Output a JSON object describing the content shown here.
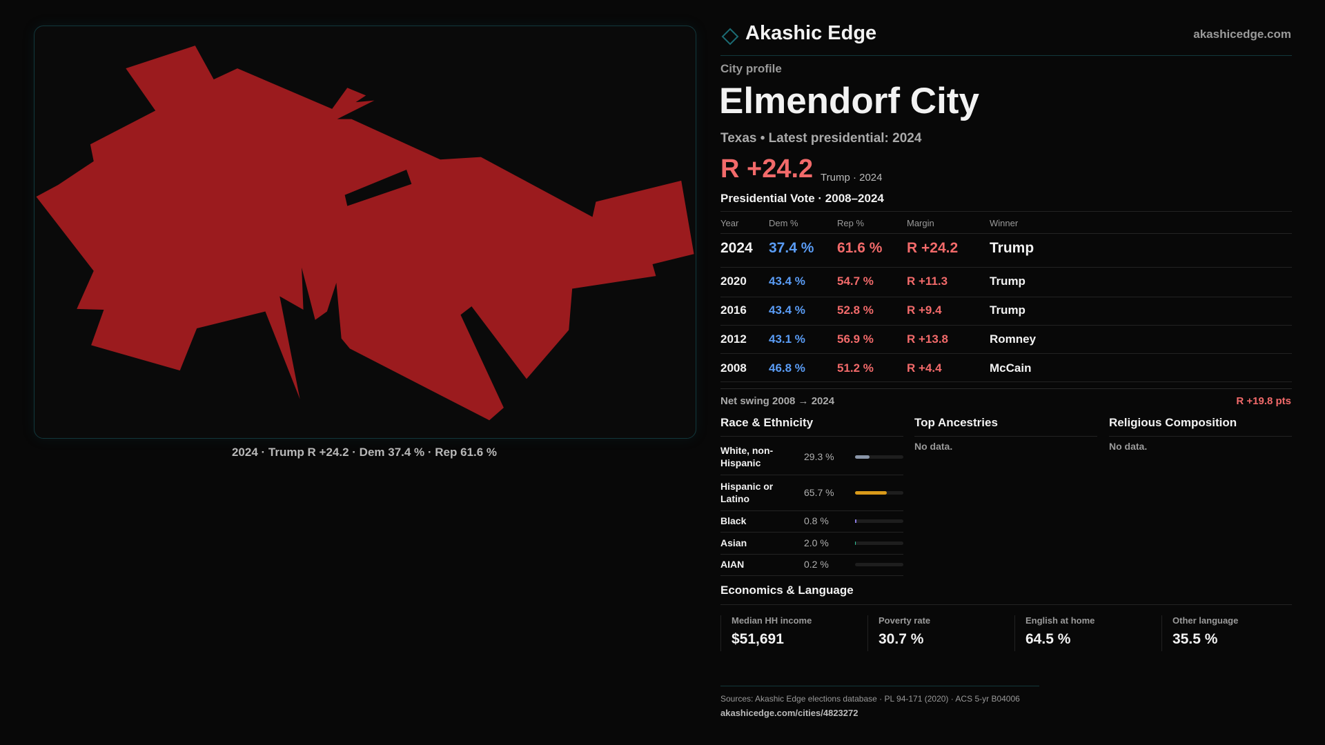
{
  "brand": {
    "name": "Akashic Edge",
    "site": "akashicedge.com",
    "logo_icon": "diamond-outline-icon",
    "accent": "#1b6b73"
  },
  "profile": {
    "kicker": "City profile",
    "title": "Elmendorf City",
    "subtitle": "Texas • Latest presidential: 2024",
    "headline_margin": "R +24.2",
    "headline_note": "Trump · 2024"
  },
  "map": {
    "caption": "2024 · Trump R +24.2 · Dem 37.4 % · Rep 61.6 %",
    "fill_color": "#9b1b1e"
  },
  "votes": {
    "title": "Presidential Vote · 2008–2024",
    "headers": [
      "Year",
      "Dem %",
      "Rep %",
      "Margin",
      "Winner"
    ],
    "rows": [
      {
        "year": "2024",
        "dem": "37.4 %",
        "rep": "61.6 %",
        "margin": "R +24.2",
        "winner": "Trump"
      },
      {
        "year": "2020",
        "dem": "43.4 %",
        "rep": "54.7 %",
        "margin": "R +11.3",
        "winner": "Trump"
      },
      {
        "year": "2016",
        "dem": "43.4 %",
        "rep": "52.8 %",
        "margin": "R +9.4",
        "winner": "Trump"
      },
      {
        "year": "2012",
        "dem": "43.1 %",
        "rep": "56.9 %",
        "margin": "R +13.8",
        "winner": "Romney"
      },
      {
        "year": "2008",
        "dem": "46.8 %",
        "rep": "51.2 %",
        "margin": "R +4.4",
        "winner": "McCain"
      }
    ],
    "swing_label": "Net swing 2008 → 2024",
    "swing_value": "R +19.8 pts"
  },
  "race": {
    "title": "Race & Ethnicity",
    "rows": [
      {
        "label": "White, non-Hispanic",
        "value": "29.3 %",
        "pct": 29.3,
        "color": "#8a96a8"
      },
      {
        "label": "Hispanic or Latino",
        "value": "65.7 %",
        "pct": 65.7,
        "color": "#d99a1a"
      },
      {
        "label": "Black",
        "value": "0.8 %",
        "pct": 0.8,
        "color": "#8a7ae0"
      },
      {
        "label": "Asian",
        "value": "2.0 %",
        "pct": 2.0,
        "color": "#2fc79a"
      },
      {
        "label": "AIAN",
        "value": "0.2 %",
        "pct": 0.2,
        "color": "#c0605a"
      }
    ]
  },
  "ancestries": {
    "title": "Top Ancestries",
    "empty": "No data."
  },
  "religion": {
    "title": "Religious Composition",
    "empty": "No data."
  },
  "economics": {
    "title": "Economics & Language",
    "stats": [
      {
        "label": "Median HH income",
        "value": "$51,691"
      },
      {
        "label": "Poverty rate",
        "value": "30.7 %"
      },
      {
        "label": "English at home",
        "value": "64.5 %"
      },
      {
        "label": "Other language",
        "value": "35.5 %"
      }
    ]
  },
  "footer": {
    "sources": "Sources: Akashic Edge elections database · PL 94-171 (2020) · ACS 5-yr B04006",
    "url": "akashicedge.com/cities/4823272"
  }
}
